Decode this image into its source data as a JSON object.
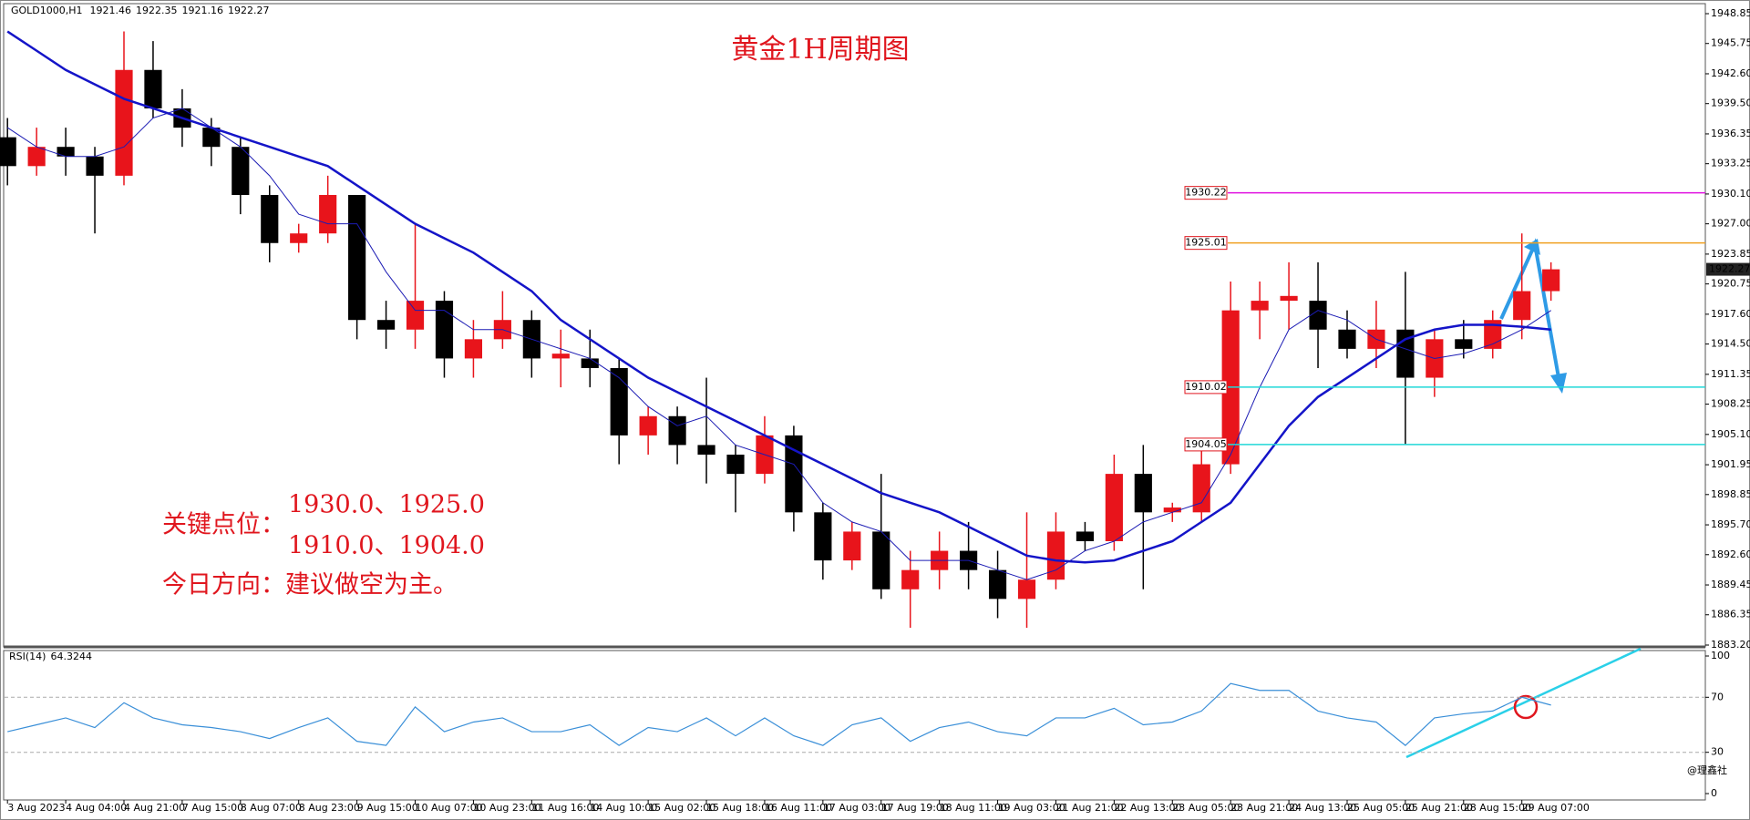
{
  "chart_data": [
    {
      "type": "candlestick",
      "title": "黄金1H周期图",
      "symbol": "GOLD1000,H1",
      "header_ohlc": [
        1921.46,
        1922.35,
        1921.16,
        1922.27
      ],
      "last_price": 1922.27,
      "up_color": "#e8141b",
      "down_color": "#000000",
      "ylim": [
        1883.2,
        1948.85
      ],
      "yticks": [
        1948.85,
        1945.75,
        {
          "value": 1942.6,
          "label": "1942.60"
        },
        {
          "value": 1939.5,
          "label": "1939.50"
        },
        1936.35,
        1933.25,
        {
          "value": 1930.1,
          "label": "1930.10"
        },
        {
          "value": 1927,
          "label": "1927.00"
        },
        1923.85,
        1920.75,
        {
          "value": 1917.6,
          "label": "1917.60"
        },
        {
          "value": 1914.5,
          "label": "1914.50"
        },
        1911.35,
        1908.25,
        {
          "value": 1905.1,
          "label": "1905.10"
        },
        1901.95,
        1898.85,
        {
          "value": 1895.7,
          "label": "1895.70"
        },
        {
          "value": 1892.6,
          "label": "1892.60"
        },
        1889.45,
        1886.35,
        {
          "value": 1883.2,
          "label": "1883.20"
        }
      ],
      "xlim": [
        -0.1,
        58.3
      ],
      "xticks": [
        {
          "value": 0,
          "label": "3 Aug 2023"
        },
        {
          "value": 2,
          "label": "4 Aug 04:00"
        },
        {
          "value": 4,
          "label": "4 Aug 21:00"
        },
        {
          "value": 6,
          "label": "7 Aug 15:00"
        },
        {
          "value": 8,
          "label": "8 Aug 07:00"
        },
        {
          "value": 10,
          "label": "8 Aug 23:00"
        },
        {
          "value": 12,
          "label": "9 Aug 15:00"
        },
        {
          "value": 14,
          "label": "10 Aug 07:00"
        },
        {
          "value": 16,
          "label": "10 Aug 23:00"
        },
        {
          "value": 18,
          "label": "11 Aug 16:00"
        },
        {
          "value": 20,
          "label": "14 Aug 10:00"
        },
        {
          "value": 22,
          "label": "15 Aug 02:00"
        },
        {
          "value": 24,
          "label": "15 Aug 18:00"
        },
        {
          "value": 26,
          "label": "16 Aug 11:00"
        },
        {
          "value": 28,
          "label": "17 Aug 03:00"
        },
        {
          "value": 30,
          "label": "17 Aug 19:00"
        },
        {
          "value": 32,
          "label": "18 Aug 11:00"
        },
        {
          "value": 34,
          "label": "19 Aug 03:00"
        },
        {
          "value": 36,
          "label": "21 Aug 21:00"
        },
        {
          "value": 38,
          "label": "22 Aug 13:00"
        },
        {
          "value": 40,
          "label": "23 Aug 05:00"
        },
        {
          "value": 42,
          "label": "23 Aug 21:00"
        },
        {
          "value": 44,
          "label": "24 Aug 13:00"
        },
        {
          "value": 46,
          "label": "25 Aug 05:00"
        },
        {
          "value": 48,
          "label": "25 Aug 21:00"
        },
        {
          "value": 50,
          "label": "28 Aug 15:00"
        },
        {
          "value": 52,
          "label": "29 Aug 07:00"
        }
      ],
      "ohlc": [
        [
          1936,
          1938,
          1931,
          1933
        ],
        [
          1933,
          1937,
          1932,
          1935
        ],
        [
          1935,
          1937,
          1932,
          1934
        ],
        [
          1934,
          1935,
          1926,
          1932
        ],
        [
          1932,
          1947,
          1931,
          1943
        ],
        [
          1943,
          1946,
          1938,
          1939
        ],
        [
          1939,
          1941,
          1935,
          1937
        ],
        [
          1937,
          1938,
          1933,
          1935
        ],
        [
          1935,
          1936,
          1928,
          1930
        ],
        [
          1930,
          1931,
          1923,
          1925
        ],
        [
          1925,
          1927,
          1924,
          1926
        ],
        [
          1926,
          1932,
          1925,
          1930
        ],
        [
          1930,
          1930,
          1915,
          1917
        ],
        [
          1917,
          1919,
          1914,
          1916
        ],
        [
          1916,
          1927,
          1914,
          1919
        ],
        [
          1919,
          1920,
          1911,
          1913
        ],
        [
          1913,
          1917,
          1911,
          1915
        ],
        [
          1915,
          1920,
          1914,
          1917
        ],
        [
          1917,
          1918,
          1911,
          1913
        ],
        [
          1913,
          1916,
          1910,
          1913.5
        ],
        [
          1913,
          1916,
          1910,
          1912
        ],
        [
          1912,
          1913,
          1902,
          1905
        ],
        [
          1905,
          1908,
          1903,
          1907
        ],
        [
          1907,
          1908,
          1902,
          1904
        ],
        [
          1904,
          1911,
          1900,
          1903
        ],
        [
          1903,
          1904,
          1897,
          1901
        ],
        [
          1901,
          1907,
          1900,
          1905
        ],
        [
          1905,
          1906,
          1895,
          1897
        ],
        [
          1897,
          1898,
          1890,
          1892
        ],
        [
          1892,
          1896,
          1891,
          1895
        ],
        [
          1895,
          1901,
          1888,
          1889
        ],
        [
          1889,
          1893,
          1885,
          1891
        ],
        [
          1891,
          1895,
          1889,
          1893
        ],
        [
          1893,
          1896,
          1889,
          1891
        ],
        [
          1891,
          1893,
          1886,
          1888
        ],
        [
          1888,
          1897,
          1885,
          1890
        ],
        [
          1890,
          1897,
          1889,
          1895
        ],
        [
          1895,
          1896,
          1893,
          1894
        ],
        [
          1894,
          1903,
          1893,
          1901
        ],
        [
          1901,
          1904,
          1889,
          1897
        ],
        [
          1897,
          1898,
          1896,
          1897.5
        ],
        [
          1897,
          1904,
          1896,
          1902
        ],
        [
          1902,
          1921,
          1901,
          1918
        ],
        [
          1918,
          1921,
          1915,
          1919
        ],
        [
          1919,
          1923,
          1916,
          1919.5
        ],
        [
          1919,
          1923,
          1912,
          1916
        ],
        [
          1916,
          1918,
          1913,
          1914
        ],
        [
          1914,
          1919,
          1912,
          1916
        ],
        [
          1916,
          1922,
          1904,
          1911
        ],
        [
          1911,
          1916,
          1909,
          1915
        ],
        [
          1915,
          1917,
          1913,
          1914
        ],
        [
          1914,
          1918,
          1913,
          1917
        ],
        [
          1917,
          1926,
          1915,
          1920
        ],
        [
          1920,
          1923,
          1919,
          1922.27
        ]
      ],
      "lines": [
        {
          "color": "#1414c8",
          "width": 2.5,
          "values": [
            1947,
            1945,
            1943,
            1941.5,
            1940,
            1939,
            1938,
            1937,
            1936,
            1935,
            1934,
            1933,
            1931,
            1929,
            1927,
            1925.5,
            1924,
            1922,
            1920,
            1917,
            1915,
            1913,
            1911,
            1909.5,
            1908,
            1906.5,
            1905,
            1903.5,
            1902,
            1900.5,
            1899,
            1898,
            1897,
            1895.5,
            1894,
            1892.5,
            1892,
            1891.8,
            1892,
            1893,
            1894,
            1896,
            1898,
            1902,
            1906,
            1909,
            1911,
            1913,
            1915,
            1916,
            1916.5,
            1916.5,
            1916.3,
            1916
          ]
        },
        {
          "color": "#1c1cb4",
          "width": 1,
          "values": [
            1937,
            1935,
            1934,
            1934,
            1935,
            1938,
            1939,
            1937,
            1935,
            1932,
            1928,
            1927,
            1927,
            1922,
            1918,
            1918,
            1916,
            1916,
            1915,
            1914,
            1913,
            1911,
            1908,
            1906,
            1907,
            1904,
            1903,
            1902,
            1898,
            1896,
            1895,
            1892,
            1892,
            1892,
            1891,
            1890,
            1891,
            1893,
            1894,
            1896,
            1897,
            1898,
            1903,
            1910,
            1916,
            1918,
            1917,
            1915,
            1914,
            1913,
            1913.5,
            1914.5,
            1916,
            1918
          ]
        }
      ],
      "levels": [
        {
          "value": 1930.22,
          "color": "#e010e0"
        },
        {
          "value": 1925.01,
          "color": "#f0a020"
        },
        {
          "value": 1910.02,
          "color": "#20d8d8"
        },
        {
          "value": 1904.05,
          "color": "#20d8d8"
        }
      ],
      "annotations": [
        "关键点位：",
        "1930.0、1925.0",
        "1910.0、1904.0",
        "今日方向：建议做空为主。"
      ],
      "watermark": "@理鑫社"
    },
    {
      "type": "line",
      "title": "RSI(14)",
      "last_value": 64.3244,
      "color": "#3a8fd8",
      "ylim": [
        0,
        100
      ],
      "yticks": [
        100,
        70,
        30,
        0
      ],
      "dashed": [
        70,
        30
      ],
      "xlim": [
        -0.1,
        58.3
      ],
      "values": [
        45,
        50,
        55,
        48,
        66,
        55,
        50,
        48,
        45,
        40,
        48,
        55,
        38,
        35,
        63,
        45,
        52,
        55,
        45,
        45,
        50,
        35,
        48,
        45,
        55,
        42,
        55,
        42,
        35,
        50,
        55,
        38,
        48,
        52,
        45,
        42,
        55,
        55,
        62,
        50,
        52,
        60,
        80,
        75,
        75,
        60,
        55,
        52,
        35,
        55,
        58,
        60,
        70,
        64.3244
      ]
    }
  ]
}
